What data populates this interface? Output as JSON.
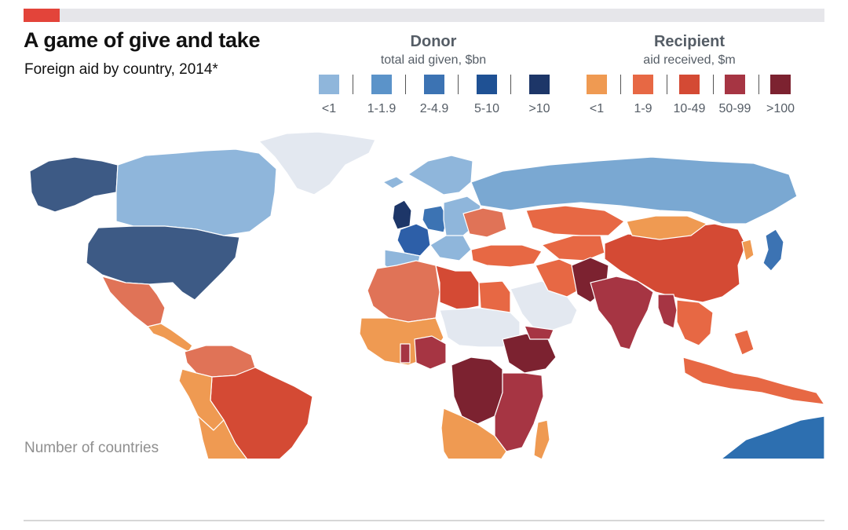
{
  "header": {
    "title": "A game of give and take",
    "subtitle": "Foreign aid by country, 2014*",
    "accent_color": "#e3443a"
  },
  "legend": {
    "donor": {
      "title": "Donor",
      "subtitle": "total aid given, $bn",
      "bins": [
        {
          "label": "<1",
          "color": "#8fb6db"
        },
        {
          "label": "1-1.9",
          "color": "#5b93c9"
        },
        {
          "label": "2-4.9",
          "color": "#3c73b3"
        },
        {
          "label": "5-10",
          "color": "#1f5194"
        },
        {
          "label": ">10",
          "color": "#1d3668"
        }
      ]
    },
    "recipient": {
      "title": "Recipient",
      "subtitle": "aid received, $m",
      "bins": [
        {
          "label": "<1",
          "color": "#ef9a52"
        },
        {
          "label": "1-9",
          "color": "#e76844"
        },
        {
          "label": "10-49",
          "color": "#d44a34"
        },
        {
          "label": "50-99",
          "color": "#a63543"
        },
        {
          "label": ">100",
          "color": "#7c2230"
        }
      ]
    }
  },
  "map": {
    "no_data_color": "#e3e8f0",
    "regions": [
      {
        "name": "greenland",
        "color": "#e3e8f0"
      },
      {
        "name": "alaska",
        "color": "#3d5a85"
      },
      {
        "name": "canada",
        "color": "#8fb6db"
      },
      {
        "name": "united-states",
        "color": "#3d5a85"
      },
      {
        "name": "mexico",
        "color": "#e07357"
      },
      {
        "name": "central-america",
        "color": "#ef9a52"
      },
      {
        "name": "venezuela-colombia",
        "color": "#e07357"
      },
      {
        "name": "brazil",
        "color": "#d44a34"
      },
      {
        "name": "peru-andes",
        "color": "#ef9a52"
      },
      {
        "name": "argentina-chile",
        "color": "#ef9a52"
      },
      {
        "name": "iceland-scandinavia",
        "color": "#8fb6db"
      },
      {
        "name": "uk",
        "color": "#1d3668"
      },
      {
        "name": "france",
        "color": "#2d5fa8"
      },
      {
        "name": "germany",
        "color": "#3c73b3"
      },
      {
        "name": "iberia",
        "color": "#8fb6db"
      },
      {
        "name": "eastern-europe",
        "color": "#8fb6db"
      },
      {
        "name": "russia",
        "color": "#7aa8d2"
      },
      {
        "name": "ukraine",
        "color": "#e07357"
      },
      {
        "name": "turkey",
        "color": "#e76844"
      },
      {
        "name": "north-africa-west",
        "color": "#e07357"
      },
      {
        "name": "libya",
        "color": "#d44a34"
      },
      {
        "name": "egypt",
        "color": "#e76844"
      },
      {
        "name": "west-africa",
        "color": "#ef9a52"
      },
      {
        "name": "nigeria",
        "color": "#a63543"
      },
      {
        "name": "sahel-chad-sudan",
        "color": "#e3e8f0"
      },
      {
        "name": "ethiopia",
        "color": "#7c2230"
      },
      {
        "name": "congo-region",
        "color": "#7c2230"
      },
      {
        "name": "east-africa",
        "color": "#a63543"
      },
      {
        "name": "southern-africa",
        "color": "#ef9a52"
      },
      {
        "name": "madagascar",
        "color": "#ef9a52"
      },
      {
        "name": "arabian-peninsula",
        "color": "#e3e8f0"
      },
      {
        "name": "yemen",
        "color": "#a63543"
      },
      {
        "name": "iran",
        "color": "#e76844"
      },
      {
        "name": "central-asia",
        "color": "#e76844"
      },
      {
        "name": "kazakhstan",
        "color": "#e76844"
      },
      {
        "name": "pakistan-afghanistan",
        "color": "#7c2230"
      },
      {
        "name": "india",
        "color": "#a63543"
      },
      {
        "name": "china",
        "color": "#d44a34"
      },
      {
        "name": "mongolia",
        "color": "#ef9a52"
      },
      {
        "name": "southeast-asia",
        "color": "#e76844"
      },
      {
        "name": "myanmar-bangladesh",
        "color": "#a63543"
      },
      {
        "name": "japan",
        "color": "#3c73b3"
      },
      {
        "name": "korea",
        "color": "#ef9a52"
      },
      {
        "name": "indonesia-philippines",
        "color": "#e76844"
      },
      {
        "name": "australia",
        "color": "#2d6fb0"
      }
    ]
  },
  "footnote": "Number of countries"
}
